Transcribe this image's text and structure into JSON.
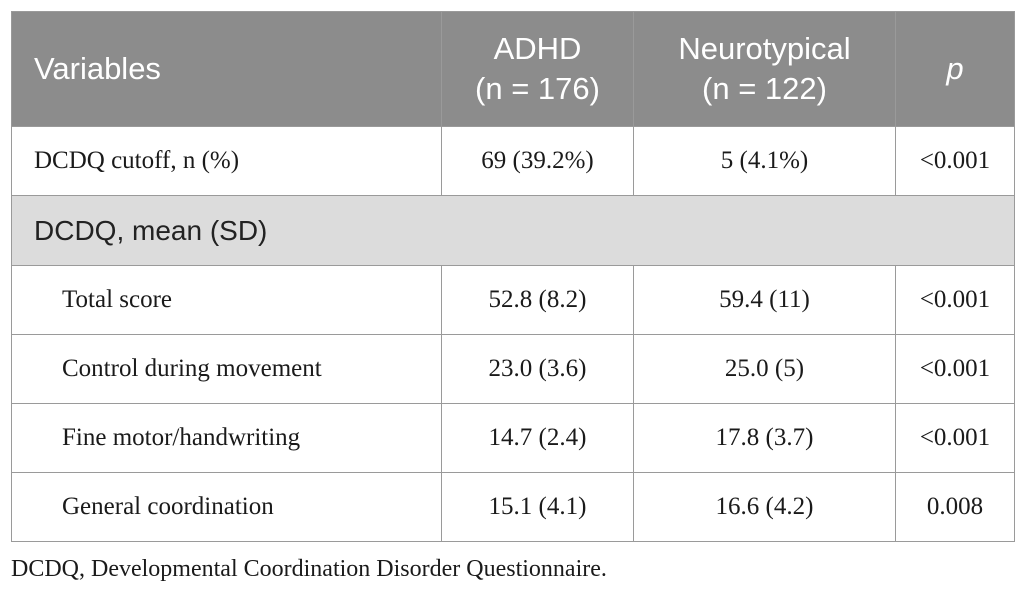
{
  "table": {
    "headers": {
      "variables": "Variables",
      "adhd_line1": "ADHD",
      "adhd_line2": "(n = 176)",
      "neuro_line1": "Neurotypical",
      "neuro_line2": "(n = 122)",
      "p": "p"
    },
    "cutoff_row": {
      "label": "DCDQ cutoff, n (%)",
      "adhd": "69 (39.2%)",
      "neurotypical": "5 (4.1%)",
      "p": "<0.001"
    },
    "section_label": "DCDQ, mean (SD)",
    "rows": [
      {
        "label": "Total score",
        "adhd": "52.8 (8.2)",
        "neurotypical": "59.4 (11)",
        "p": "<0.001"
      },
      {
        "label": "Control during movement",
        "adhd": "23.0 (3.6)",
        "neurotypical": "25.0 (5)",
        "p": "<0.001"
      },
      {
        "label": "Fine motor/handwriting",
        "adhd": "14.7 (2.4)",
        "neurotypical": "17.8 (3.7)",
        "p": "<0.001"
      },
      {
        "label": "General coordination",
        "adhd": "15.1 (4.1)",
        "neurotypical": "16.6 (4.2)",
        "p": "0.008"
      }
    ]
  },
  "footnote": "DCDQ, Developmental Coordination Disorder Questionnaire.",
  "colors": {
    "header_bg": "#8c8c8c",
    "section_bg": "#dcdcdc",
    "border": "#9a9a9a"
  }
}
